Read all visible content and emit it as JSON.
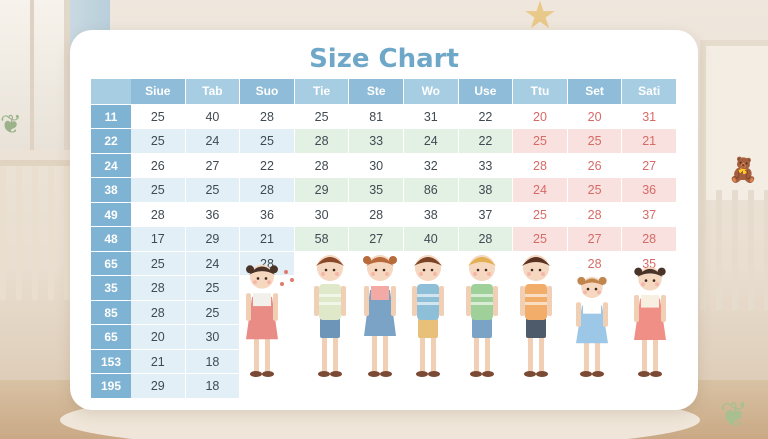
{
  "title": "Size Chart",
  "colors": {
    "header_blue": "#8fbcd8",
    "header_blue_light": "#a7cde3",
    "size_col": "#7fb3d4",
    "blue_band": "#e3eff7",
    "green_band": "#e2f1e4",
    "pink_band": "#f8e1df",
    "red_text": "#d76a66",
    "title": "#6ea7c8"
  },
  "headers": [
    "Siue",
    "Tab",
    "Suo",
    "Tie",
    "Ste",
    "Wo",
    "Use",
    "Ttu",
    "Set",
    "Sati"
  ],
  "rows": [
    {
      "size": "11",
      "values": [
        "25",
        "40",
        "28",
        "25",
        "81",
        "31",
        "22",
        "20",
        "20",
        "31"
      ]
    },
    {
      "size": "22",
      "values": [
        "25",
        "24",
        "25",
        "28",
        "33",
        "24",
        "22",
        "25",
        "25",
        "21"
      ]
    },
    {
      "size": "24",
      "values": [
        "26",
        "27",
        "22",
        "28",
        "30",
        "32",
        "33",
        "28",
        "26",
        "27"
      ]
    },
    {
      "size": "38",
      "values": [
        "25",
        "25",
        "28",
        "29",
        "35",
        "86",
        "38",
        "24",
        "25",
        "36"
      ]
    },
    {
      "size": "49",
      "values": [
        "28",
        "36",
        "36",
        "30",
        "28",
        "38",
        "37",
        "25",
        "28",
        "37"
      ]
    },
    {
      "size": "48",
      "values": [
        "17",
        "29",
        "21",
        "58",
        "27",
        "40",
        "28",
        "25",
        "27",
        "28"
      ]
    },
    {
      "size": "65",
      "values": [
        "25",
        "24",
        "28",
        "",
        "",
        "",
        "",
        "",
        "28",
        "35"
      ]
    },
    {
      "size": "35",
      "values": [
        "28",
        "25",
        "",
        "",
        "",
        "",
        "",
        "",
        "",
        ""
      ]
    },
    {
      "size": "85",
      "values": [
        "28",
        "25",
        "",
        "",
        "",
        "",
        "",
        "",
        "",
        ""
      ]
    },
    {
      "size": "65",
      "values": [
        "20",
        "30",
        "",
        "",
        "",
        "",
        "",
        "",
        "",
        ""
      ]
    },
    {
      "size": "153",
      "values": [
        "21",
        "18",
        "",
        "",
        "",
        "",
        "",
        "",
        "",
        ""
      ]
    },
    {
      "size": "195",
      "values": [
        "29",
        "18",
        "",
        "",
        "",
        "",
        "",
        "",
        "",
        ""
      ]
    }
  ],
  "kids": [
    {
      "name": "girl-1",
      "hair": "#4a3328",
      "shirt": "#f2f0ea",
      "bottom": "#e98c85",
      "dress": true
    },
    {
      "name": "boy-1",
      "hair": "#8a4a2a",
      "shirt": "#dfe8c8",
      "bottom": "#6d95b8",
      "dress": false
    },
    {
      "name": "girl-2",
      "hair": "#b86a3a",
      "shirt": "#f3a9a4",
      "bottom": "#7ba3c6",
      "dress": true
    },
    {
      "name": "boy-2",
      "hair": "#7a4426",
      "shirt": "#8ebfd8",
      "bottom": "#e9c07a",
      "dress": false
    },
    {
      "name": "boy-3",
      "hair": "#e2b052",
      "shirt": "#9fd09a",
      "bottom": "#7ba3c6",
      "dress": false
    },
    {
      "name": "boy-4",
      "hair": "#5a3222",
      "shirt": "#f2ad6a",
      "bottom": "#4e5b6b",
      "dress": false
    },
    {
      "name": "girl-3",
      "hair": "#c0864e",
      "shirt": "#ffffff",
      "bottom": "#9cc7e6",
      "dress": true
    },
    {
      "name": "girl-4",
      "hair": "#4a3328",
      "shirt": "#f7efe0",
      "bottom": "#ef8f86",
      "dress": true
    }
  ]
}
